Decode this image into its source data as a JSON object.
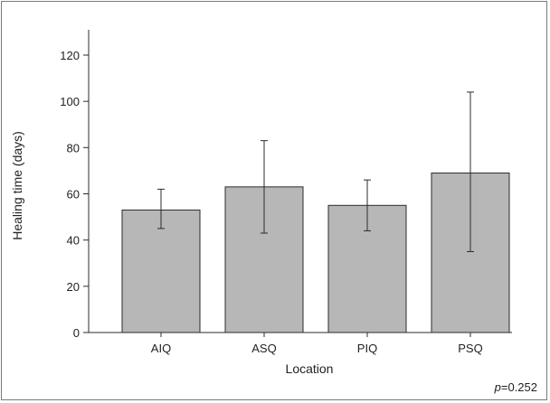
{
  "chart_data": {
    "type": "bar",
    "title": "",
    "xlabel": "Location",
    "ylabel": "Healing time (days)",
    "categories": [
      "AIQ",
      "ASQ",
      "PIQ",
      "PSQ"
    ],
    "values": [
      53,
      63,
      55,
      69
    ],
    "error_low": [
      45,
      43,
      44,
      35
    ],
    "error_high": [
      62,
      83,
      66,
      104
    ],
    "ylim": [
      0,
      130
    ],
    "yticks": [
      0,
      20,
      40,
      60,
      80,
      100,
      120
    ],
    "grid": false,
    "bar_color": "#b7b7b7",
    "annotation": {
      "prefix": "p",
      "text": "=0.252"
    }
  }
}
